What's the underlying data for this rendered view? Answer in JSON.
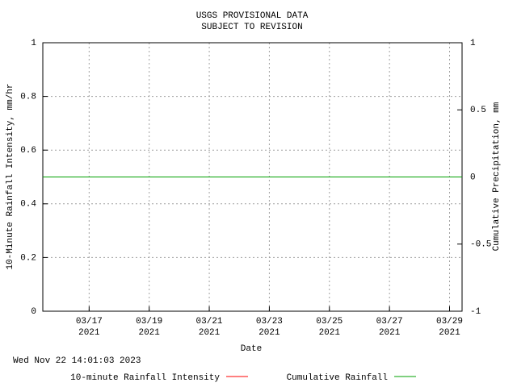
{
  "chart_data": {
    "type": "line",
    "title": "USGS PROVISIONAL DATA",
    "subtitle": "SUBJECT TO REVISION",
    "x_label": "Date",
    "y_label": "10-Minute Rainfall Intensity, mm/hr",
    "y2_label": "Cumulative Precipitation, mm",
    "timestamp": "Wed Nov 22 14:01:03 2023",
    "x": [
      "2021-03-15T11:00",
      "2021-03-29T10:00"
    ],
    "xlim": [
      "2021-03-15T11:00",
      "2021-03-29T10:00"
    ],
    "xticks": [
      {
        "value": "2021-03-17T00:00",
        "label": "03/17\n2021"
      },
      {
        "value": "2021-03-19T00:00",
        "label": "03/19\n2021"
      },
      {
        "value": "2021-03-21T00:00",
        "label": "03/21\n2021"
      },
      {
        "value": "2021-03-23T00:00",
        "label": "03/23\n2021"
      },
      {
        "value": "2021-03-25T00:00",
        "label": "03/25\n2021"
      },
      {
        "value": "2021-03-27T00:00",
        "label": "03/27\n2021"
      },
      {
        "value": "2021-03-29T00:00",
        "label": "03/29\n2021"
      }
    ],
    "ylim": [
      0,
      1
    ],
    "yticks": [
      0,
      0.2,
      0.4,
      0.6,
      0.8,
      1
    ],
    "y2lim": [
      -1,
      1
    ],
    "y2ticks": [
      -1,
      -0.5,
      0,
      0.5,
      1
    ],
    "grid": true,
    "series": [
      {
        "name": "10-minute Rainfall Intensity",
        "color": "#ff0000",
        "values": [
          null,
          null
        ]
      },
      {
        "name": "Cumulative Rainfall",
        "color": "#00a000",
        "values": [
          0,
          0
        ],
        "axis": "y2"
      }
    ]
  }
}
